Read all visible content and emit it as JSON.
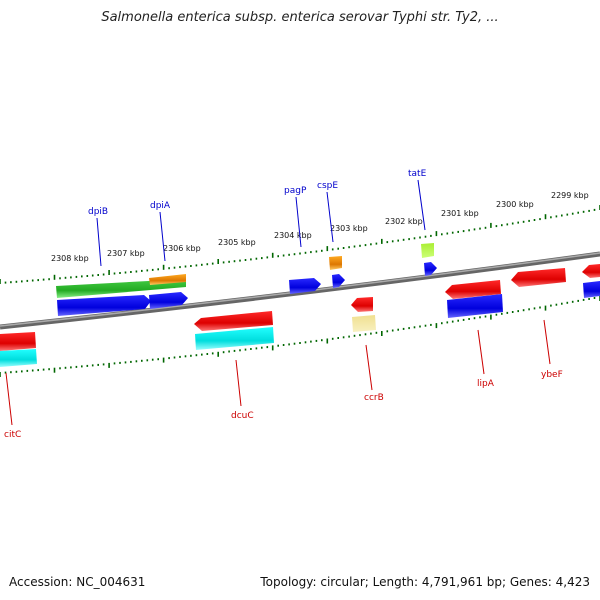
{
  "title": "Salmonella enterica subsp. enterica serovar Typhi str. Ty2, ...",
  "footer": {
    "accession": "Accession: NC_004631",
    "topology": "Topology: circular; Length: 4,791,961 bp; Genes: 4,423"
  },
  "scale_labels": [
    "2308 kbp",
    "2307 kbp",
    "2306 kbp",
    "2305 kbp",
    "2304 kbp",
    "2303 kbp",
    "2302 kbp",
    "2301 kbp",
    "2300 kbp",
    "2299 kbp"
  ],
  "genes_top": [
    "dpiB",
    "dpiA",
    "pagP",
    "cspE",
    "tatE"
  ],
  "genes_bottom": [
    "citC",
    "dcuC",
    "ccrB",
    "lipA",
    "ybeF"
  ],
  "colors": {
    "forward": "#0000ee",
    "reverse": "#ee0000",
    "green": "#33bb33",
    "orange": "#ee8800",
    "cyan": "#00eeee",
    "lime": "#99dd22",
    "khaki": "#eedd88",
    "ruler": "#006600",
    "backbone": "#808080"
  }
}
